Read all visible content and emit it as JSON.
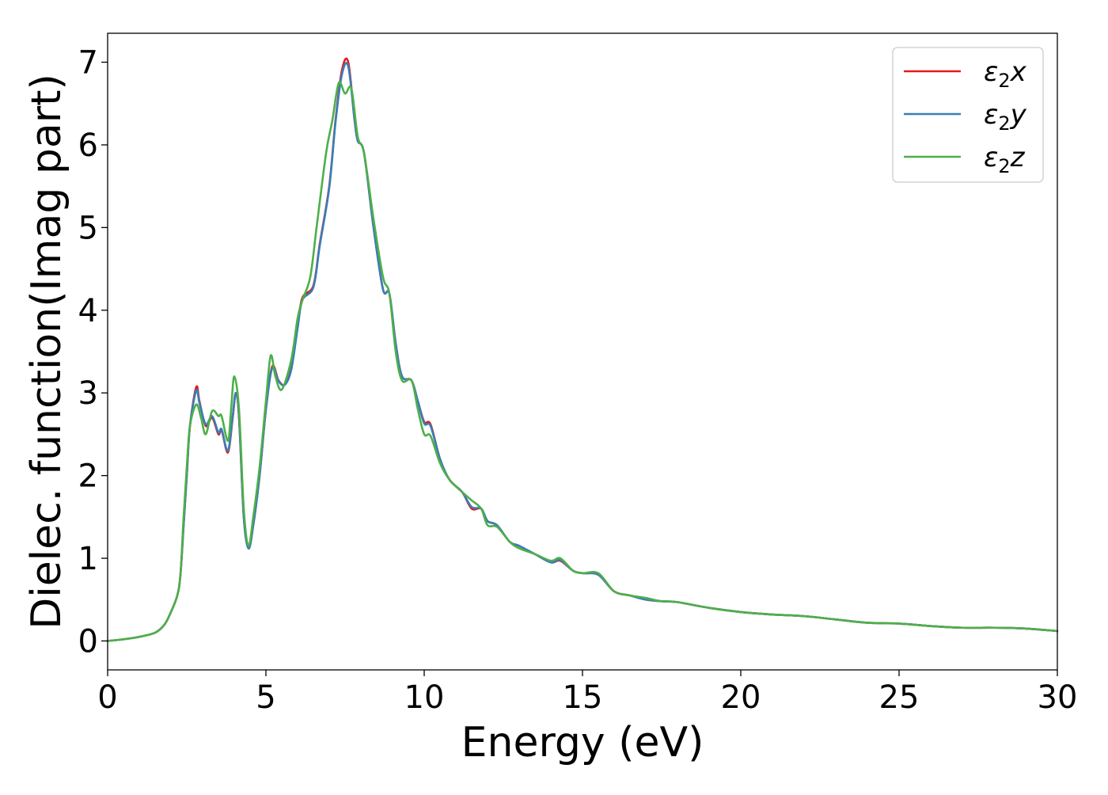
{
  "chart_data": {
    "type": "line",
    "title": "",
    "xlabel": "Energy (eV)",
    "ylabel": "Dielec. function(Imag part)",
    "xlim": [
      0,
      30
    ],
    "ylim": [
      -0.35,
      7.35
    ],
    "x_ticks": [
      0,
      5,
      10,
      15,
      20,
      25,
      30
    ],
    "y_ticks": [
      0,
      1,
      2,
      3,
      4,
      5,
      6,
      7
    ],
    "grid": false,
    "legend_position": "top-right",
    "series": [
      {
        "name": "ε₂x",
        "legend_base": "ε",
        "legend_sub": "2",
        "legend_var": "x",
        "color": "#e41a1c",
        "points": [
          [
            0,
            0.0
          ],
          [
            0.5,
            0.02
          ],
          [
            1.0,
            0.05
          ],
          [
            1.5,
            0.1
          ],
          [
            1.8,
            0.2
          ],
          [
            2.0,
            0.35
          ],
          [
            2.2,
            0.55
          ],
          [
            2.3,
            0.8
          ],
          [
            2.4,
            1.4
          ],
          [
            2.5,
            2.0
          ],
          [
            2.6,
            2.6
          ],
          [
            2.8,
            3.07
          ],
          [
            2.9,
            2.9
          ],
          [
            3.1,
            2.6
          ],
          [
            3.3,
            2.7
          ],
          [
            3.5,
            2.5
          ],
          [
            3.6,
            2.55
          ],
          [
            3.8,
            2.28
          ],
          [
            3.95,
            2.7
          ],
          [
            4.05,
            3.0
          ],
          [
            4.15,
            2.7
          ],
          [
            4.3,
            1.5
          ],
          [
            4.45,
            1.12
          ],
          [
            4.6,
            1.4
          ],
          [
            4.8,
            2.0
          ],
          [
            5.0,
            2.8
          ],
          [
            5.2,
            3.32
          ],
          [
            5.4,
            3.15
          ],
          [
            5.6,
            3.1
          ],
          [
            5.8,
            3.3
          ],
          [
            6.0,
            3.8
          ],
          [
            6.15,
            4.15
          ],
          [
            6.5,
            4.3
          ],
          [
            6.7,
            4.8
          ],
          [
            7.0,
            5.5
          ],
          [
            7.2,
            6.3
          ],
          [
            7.4,
            6.9
          ],
          [
            7.6,
            7.0
          ],
          [
            7.8,
            6.3
          ],
          [
            7.9,
            6.05
          ],
          [
            8.1,
            5.9
          ],
          [
            8.4,
            5.0
          ],
          [
            8.7,
            4.25
          ],
          [
            8.9,
            4.2
          ],
          [
            9.1,
            3.6
          ],
          [
            9.3,
            3.2
          ],
          [
            9.6,
            3.15
          ],
          [
            9.8,
            2.9
          ],
          [
            10.0,
            2.65
          ],
          [
            10.2,
            2.62
          ],
          [
            10.5,
            2.2
          ],
          [
            10.8,
            1.95
          ],
          [
            11.2,
            1.8
          ],
          [
            11.5,
            1.6
          ],
          [
            11.8,
            1.6
          ],
          [
            12.0,
            1.45
          ],
          [
            12.3,
            1.4
          ],
          [
            12.7,
            1.2
          ],
          [
            13.0,
            1.15
          ],
          [
            13.5,
            1.05
          ],
          [
            14.0,
            0.95
          ],
          [
            14.3,
            0.97
          ],
          [
            14.7,
            0.85
          ],
          [
            15.0,
            0.82
          ],
          [
            15.5,
            0.8
          ],
          [
            16.0,
            0.6
          ],
          [
            16.5,
            0.55
          ],
          [
            17.0,
            0.5
          ],
          [
            17.5,
            0.48
          ],
          [
            18.0,
            0.47
          ],
          [
            19.0,
            0.4
          ],
          [
            20.0,
            0.35
          ],
          [
            21.0,
            0.32
          ],
          [
            22.0,
            0.3
          ],
          [
            23.0,
            0.26
          ],
          [
            24.0,
            0.22
          ],
          [
            25.0,
            0.21
          ],
          [
            26.0,
            0.18
          ],
          [
            27.0,
            0.16
          ],
          [
            28.0,
            0.16
          ],
          [
            29.0,
            0.15
          ],
          [
            30.0,
            0.12
          ]
        ]
      },
      {
        "name": "ε₂y",
        "legend_base": "ε",
        "legend_sub": "2",
        "legend_var": "y",
        "color": "#377eb8",
        "points": [
          [
            0,
            0.0
          ],
          [
            0.5,
            0.02
          ],
          [
            1.0,
            0.05
          ],
          [
            1.5,
            0.1
          ],
          [
            1.8,
            0.2
          ],
          [
            2.0,
            0.35
          ],
          [
            2.2,
            0.55
          ],
          [
            2.3,
            0.8
          ],
          [
            2.4,
            1.4
          ],
          [
            2.5,
            2.0
          ],
          [
            2.6,
            2.6
          ],
          [
            2.8,
            3.03
          ],
          [
            2.9,
            2.88
          ],
          [
            3.1,
            2.62
          ],
          [
            3.3,
            2.72
          ],
          [
            3.5,
            2.52
          ],
          [
            3.6,
            2.56
          ],
          [
            3.8,
            2.3
          ],
          [
            3.95,
            2.72
          ],
          [
            4.05,
            3.0
          ],
          [
            4.15,
            2.72
          ],
          [
            4.3,
            1.5
          ],
          [
            4.45,
            1.12
          ],
          [
            4.6,
            1.4
          ],
          [
            4.8,
            2.0
          ],
          [
            5.0,
            2.8
          ],
          [
            5.2,
            3.3
          ],
          [
            5.4,
            3.14
          ],
          [
            5.6,
            3.1
          ],
          [
            5.8,
            3.28
          ],
          [
            6.0,
            3.78
          ],
          [
            6.15,
            4.12
          ],
          [
            6.5,
            4.28
          ],
          [
            6.7,
            4.78
          ],
          [
            7.0,
            5.48
          ],
          [
            7.2,
            6.28
          ],
          [
            7.4,
            6.85
          ],
          [
            7.6,
            6.95
          ],
          [
            7.8,
            6.3
          ],
          [
            7.9,
            6.05
          ],
          [
            8.1,
            5.9
          ],
          [
            8.4,
            5.0
          ],
          [
            8.7,
            4.25
          ],
          [
            8.9,
            4.2
          ],
          [
            9.1,
            3.6
          ],
          [
            9.3,
            3.2
          ],
          [
            9.6,
            3.15
          ],
          [
            9.8,
            2.9
          ],
          [
            10.0,
            2.63
          ],
          [
            10.2,
            2.6
          ],
          [
            10.5,
            2.2
          ],
          [
            10.8,
            1.95
          ],
          [
            11.2,
            1.8
          ],
          [
            11.5,
            1.62
          ],
          [
            11.8,
            1.6
          ],
          [
            12.0,
            1.45
          ],
          [
            12.3,
            1.4
          ],
          [
            12.7,
            1.2
          ],
          [
            13.0,
            1.15
          ],
          [
            13.5,
            1.05
          ],
          [
            14.0,
            0.95
          ],
          [
            14.3,
            0.98
          ],
          [
            14.7,
            0.85
          ],
          [
            15.0,
            0.82
          ],
          [
            15.5,
            0.8
          ],
          [
            16.0,
            0.6
          ],
          [
            16.5,
            0.55
          ],
          [
            17.0,
            0.5
          ],
          [
            17.5,
            0.48
          ],
          [
            18.0,
            0.47
          ],
          [
            19.0,
            0.4
          ],
          [
            20.0,
            0.35
          ],
          [
            21.0,
            0.32
          ],
          [
            22.0,
            0.3
          ],
          [
            23.0,
            0.26
          ],
          [
            24.0,
            0.22
          ],
          [
            25.0,
            0.21
          ],
          [
            26.0,
            0.18
          ],
          [
            27.0,
            0.16
          ],
          [
            28.0,
            0.16
          ],
          [
            29.0,
            0.15
          ],
          [
            30.0,
            0.12
          ]
        ]
      },
      {
        "name": "ε₂z",
        "legend_base": "ε",
        "legend_sub": "2",
        "legend_var": "z",
        "color": "#4daf4a",
        "points": [
          [
            0,
            0.0
          ],
          [
            0.5,
            0.02
          ],
          [
            1.0,
            0.05
          ],
          [
            1.5,
            0.1
          ],
          [
            1.8,
            0.2
          ],
          [
            2.0,
            0.35
          ],
          [
            2.2,
            0.55
          ],
          [
            2.3,
            0.8
          ],
          [
            2.4,
            1.5
          ],
          [
            2.5,
            2.1
          ],
          [
            2.6,
            2.6
          ],
          [
            2.8,
            2.86
          ],
          [
            2.95,
            2.7
          ],
          [
            3.1,
            2.5
          ],
          [
            3.3,
            2.78
          ],
          [
            3.5,
            2.72
          ],
          [
            3.6,
            2.72
          ],
          [
            3.8,
            2.42
          ],
          [
            3.9,
            2.8
          ],
          [
            4.0,
            3.2
          ],
          [
            4.15,
            2.8
          ],
          [
            4.3,
            1.6
          ],
          [
            4.45,
            1.15
          ],
          [
            4.6,
            1.5
          ],
          [
            4.8,
            2.1
          ],
          [
            5.0,
            2.9
          ],
          [
            5.15,
            3.45
          ],
          [
            5.3,
            3.2
          ],
          [
            5.5,
            3.04
          ],
          [
            5.8,
            3.4
          ],
          [
            6.0,
            3.9
          ],
          [
            6.15,
            4.12
          ],
          [
            6.4,
            4.4
          ],
          [
            6.6,
            5.0
          ],
          [
            6.9,
            5.9
          ],
          [
            7.1,
            6.3
          ],
          [
            7.3,
            6.75
          ],
          [
            7.5,
            6.62
          ],
          [
            7.7,
            6.68
          ],
          [
            7.9,
            6.1
          ],
          [
            8.1,
            5.9
          ],
          [
            8.4,
            5.1
          ],
          [
            8.7,
            4.4
          ],
          [
            8.9,
            4.2
          ],
          [
            9.1,
            3.5
          ],
          [
            9.3,
            3.15
          ],
          [
            9.6,
            3.15
          ],
          [
            9.8,
            2.8
          ],
          [
            10.0,
            2.5
          ],
          [
            10.2,
            2.48
          ],
          [
            10.5,
            2.15
          ],
          [
            10.8,
            1.95
          ],
          [
            11.2,
            1.8
          ],
          [
            11.5,
            1.7
          ],
          [
            11.8,
            1.6
          ],
          [
            12.0,
            1.4
          ],
          [
            12.3,
            1.38
          ],
          [
            12.7,
            1.2
          ],
          [
            13.0,
            1.12
          ],
          [
            13.5,
            1.05
          ],
          [
            14.0,
            0.97
          ],
          [
            14.3,
            1.0
          ],
          [
            14.7,
            0.85
          ],
          [
            15.0,
            0.82
          ],
          [
            15.5,
            0.82
          ],
          [
            16.0,
            0.6
          ],
          [
            16.5,
            0.55
          ],
          [
            17.0,
            0.52
          ],
          [
            17.5,
            0.48
          ],
          [
            18.0,
            0.47
          ],
          [
            19.0,
            0.4
          ],
          [
            20.0,
            0.35
          ],
          [
            21.0,
            0.32
          ],
          [
            22.0,
            0.3
          ],
          [
            23.0,
            0.26
          ],
          [
            24.0,
            0.22
          ],
          [
            25.0,
            0.21
          ],
          [
            26.0,
            0.18
          ],
          [
            27.0,
            0.16
          ],
          [
            28.0,
            0.16
          ],
          [
            29.0,
            0.15
          ],
          [
            30.0,
            0.12
          ]
        ]
      }
    ]
  }
}
